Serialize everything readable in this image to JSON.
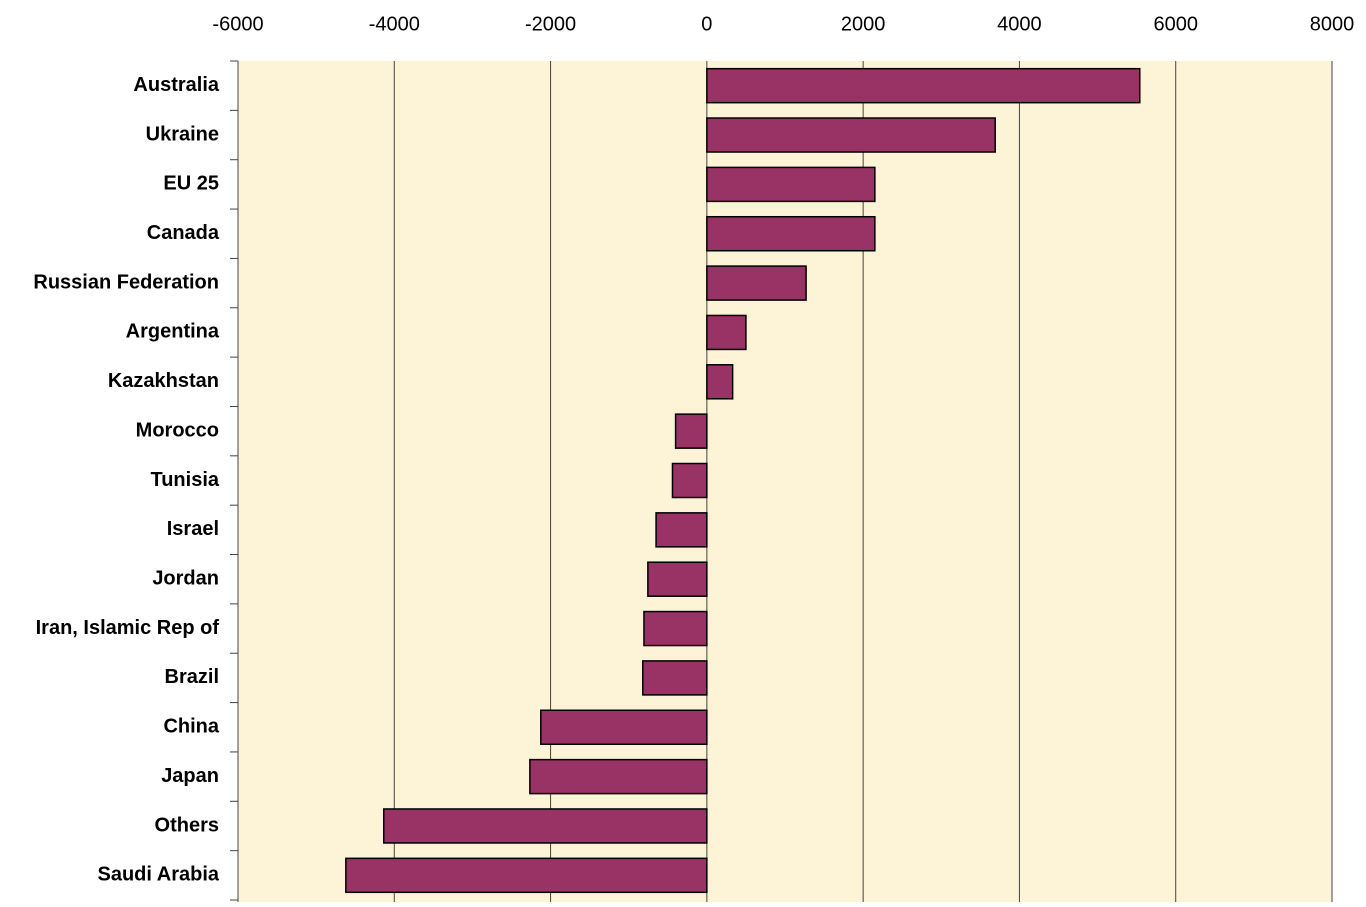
{
  "chart_data": {
    "type": "barh",
    "categories": [
      "Australia",
      "Ukraine",
      "EU 25",
      "Canada",
      "Russian Federation",
      "Argentina",
      "Kazakhstan",
      "Morocco",
      "Tunisia",
      "Israel",
      "Jordan",
      "Iran, Islamic Rep of",
      "Brazil",
      "China",
      "Japan",
      "Others",
      "Saudi Arabia"
    ],
    "values": [
      5540,
      3690,
      2150,
      2150,
      1270,
      500,
      330,
      -400,
      -440,
      -650,
      -755,
      -805,
      -820,
      -2125,
      -2265,
      -4135,
      -4620
    ],
    "color": "#993366",
    "xlim": [
      -6000,
      8000
    ],
    "xticks": [
      -6000,
      -4000,
      -2000,
      0,
      2000,
      4000,
      6000,
      8000
    ],
    "grid": true
  }
}
